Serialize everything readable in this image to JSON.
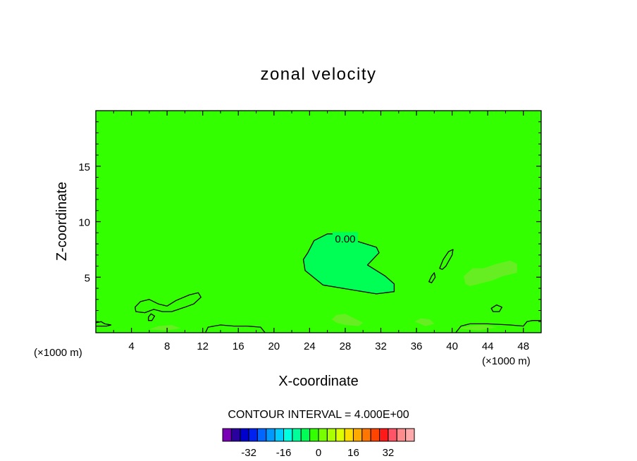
{
  "chart_data": {
    "type": "contour",
    "title": "zonal velocity",
    "xlabel": "X-coordinate",
    "ylabel": "Z-coordinate",
    "x_unit": "(×1000 m)",
    "xlim": [
      0,
      50
    ],
    "ylim": [
      0,
      20
    ],
    "x_ticks": [
      4,
      8,
      12,
      16,
      20,
      24,
      28,
      32,
      36,
      40,
      44,
      48
    ],
    "x_tick_labels": [
      "4",
      "8",
      "12",
      "16",
      "20",
      "24",
      "28",
      "32",
      "36",
      "40",
      "44",
      "48"
    ],
    "y_ticks": [
      5,
      10,
      15
    ],
    "y_tick_labels": [
      "5",
      "10",
      "15"
    ],
    "background_color": "#33ff00",
    "contour_label": "0.00",
    "contour_interval_text": "CONTOUR INTERVAL = 4.000E+00",
    "colorbar": {
      "colors": [
        "#7a00b8",
        "#2a009e",
        "#0000cc",
        "#0022f0",
        "#0066ff",
        "#0099ff",
        "#00ccff",
        "#00ffe0",
        "#00ff99",
        "#00ff55",
        "#33ff00",
        "#77ff00",
        "#aaff00",
        "#ddff00",
        "#ffdd00",
        "#ffaa00",
        "#ff7700",
        "#ff4400",
        "#ff1a1a",
        "#ff5566",
        "#ff8c8c",
        "#ffaaaa"
      ],
      "tick_values": [
        -32,
        -16,
        0,
        16,
        32
      ],
      "tick_labels": [
        "-32",
        "-16",
        "0",
        "16",
        "32"
      ]
    },
    "regions": [
      {
        "name": "negative-core",
        "fill": "#00ff55",
        "points": [
          [
            23.8,
            7.2
          ],
          [
            24.5,
            8.3
          ],
          [
            26,
            8.9
          ],
          [
            27.5,
            8.9
          ],
          [
            29.5,
            8.2
          ],
          [
            31.5,
            7.7
          ],
          [
            31.8,
            7.2
          ],
          [
            30.5,
            6.1
          ],
          [
            32.5,
            5.1
          ],
          [
            33.5,
            4.4
          ],
          [
            33.5,
            3.7
          ],
          [
            31.5,
            3.5
          ],
          [
            28.5,
            3.9
          ],
          [
            25.5,
            4.3
          ],
          [
            23.5,
            5.6
          ],
          [
            23.3,
            6.6
          ]
        ]
      },
      {
        "name": "weak-positive-44",
        "fill": "#66ee22",
        "points": [
          [
            41.3,
            5.1
          ],
          [
            42.3,
            5.8
          ],
          [
            43.5,
            5.8
          ],
          [
            45,
            6.2
          ],
          [
            46.5,
            6.5
          ],
          [
            47.3,
            6.2
          ],
          [
            47.3,
            5.4
          ],
          [
            45.7,
            5.1
          ],
          [
            44.5,
            4.7
          ],
          [
            43,
            4.4
          ],
          [
            42,
            4.2
          ],
          [
            41.5,
            4.4
          ]
        ]
      },
      {
        "name": "weak-positive-27",
        "fill": "#66ee22",
        "points": [
          [
            26.5,
            1.2
          ],
          [
            27,
            1.6
          ],
          [
            28,
            1.7
          ],
          [
            29,
            1.3
          ],
          [
            30,
            0.9
          ],
          [
            29.5,
            0.6
          ],
          [
            28,
            0.7
          ],
          [
            27,
            0.9
          ]
        ]
      },
      {
        "name": "weak-positive-37",
        "fill": "#66ee22",
        "points": [
          [
            35.8,
            1
          ],
          [
            36.5,
            1.3
          ],
          [
            37.5,
            1.2
          ],
          [
            38,
            0.8
          ],
          [
            37,
            0.6
          ]
        ]
      },
      {
        "name": "weak-positive-8",
        "fill": "#66ee22",
        "points": [
          [
            6,
            0.3
          ],
          [
            7,
            0.6
          ],
          [
            8.5,
            0.7
          ],
          [
            9.5,
            0.4
          ],
          [
            8,
            0.2
          ]
        ]
      },
      {
        "name": "weak-positive-43",
        "fill": "#66ee22",
        "points": [
          [
            40.5,
            0.4
          ],
          [
            42,
            0.6
          ],
          [
            43.5,
            0.7
          ],
          [
            45,
            0.5
          ],
          [
            43,
            0.2
          ]
        ]
      }
    ],
    "contours": [
      {
        "name": "zero-contour-core",
        "closed": true,
        "points": [
          [
            23.8,
            7.2
          ],
          [
            24.5,
            8.3
          ],
          [
            26,
            8.9
          ],
          [
            27.5,
            8.9
          ],
          [
            29.5,
            8.2
          ],
          [
            31.5,
            7.7
          ],
          [
            31.8,
            7.2
          ],
          [
            30.5,
            6.1
          ],
          [
            32.5,
            5.1
          ],
          [
            33.5,
            4.4
          ],
          [
            33.5,
            3.7
          ],
          [
            31.5,
            3.5
          ],
          [
            28.5,
            3.9
          ],
          [
            25.5,
            4.3
          ],
          [
            23.5,
            5.6
          ],
          [
            23.3,
            6.6
          ]
        ]
      },
      {
        "name": "zero-contour-low-4-12",
        "closed": true,
        "points": [
          [
            4.4,
            2.3
          ],
          [
            5,
            2.8
          ],
          [
            6,
            3
          ],
          [
            7,
            2.6
          ],
          [
            8,
            2.4
          ],
          [
            9,
            2.9
          ],
          [
            10.5,
            3.4
          ],
          [
            11.5,
            3.6
          ],
          [
            11.8,
            3.2
          ],
          [
            11,
            2.6
          ],
          [
            10,
            2.3
          ],
          [
            8.5,
            1.9
          ],
          [
            7.5,
            1.9
          ],
          [
            6.5,
            2.1
          ],
          [
            5.5,
            1.8
          ],
          [
            4.5,
            1.9
          ]
        ]
      },
      {
        "name": "zero-contour-39-6",
        "closed": true,
        "points": [
          [
            38.6,
            5.8
          ],
          [
            39,
            6.6
          ],
          [
            39.6,
            7.3
          ],
          [
            40.1,
            7.5
          ],
          [
            40,
            7
          ],
          [
            39.3,
            6
          ],
          [
            38.9,
            5.7
          ]
        ]
      },
      {
        "name": "zero-contour-37-5",
        "closed": true,
        "points": [
          [
            37.4,
            4.6
          ],
          [
            37.7,
            5.1
          ],
          [
            38,
            5.4
          ],
          [
            38.1,
            5
          ],
          [
            37.7,
            4.5
          ]
        ]
      },
      {
        "name": "zero-contour-45-2",
        "closed": true,
        "points": [
          [
            44.4,
            2.2
          ],
          [
            45,
            2.5
          ],
          [
            45.6,
            2.3
          ],
          [
            45.3,
            1.9
          ],
          [
            44.6,
            1.9
          ]
        ]
      },
      {
        "name": "zero-contour-6-1",
        "closed": true,
        "points": [
          [
            5.9,
            1.4
          ],
          [
            6.2,
            1.7
          ],
          [
            6.6,
            1.5
          ],
          [
            6.3,
            1.1
          ],
          [
            5.9,
            1.1
          ]
        ]
      },
      {
        "name": "zero-contour-bottom-13-19",
        "closed": false,
        "points": [
          [
            12.3,
            0
          ],
          [
            12.6,
            0.5
          ],
          [
            14,
            0.7
          ],
          [
            15.5,
            0.6
          ],
          [
            17,
            0.6
          ],
          [
            18.5,
            0.5
          ],
          [
            19,
            0
          ]
        ]
      },
      {
        "name": "zero-contour-bottom-left",
        "closed": false,
        "points": [
          [
            0,
            0.9
          ],
          [
            0.6,
            1
          ],
          [
            1,
            0.8
          ],
          [
            1.7,
            0.7
          ],
          [
            1.2,
            0.6
          ],
          [
            0,
            0.6
          ]
        ]
      },
      {
        "name": "zero-contour-bottom-41-50",
        "closed": false,
        "points": [
          [
            40.4,
            0
          ],
          [
            41,
            0.6
          ],
          [
            42,
            0.8
          ],
          [
            44,
            0.8
          ],
          [
            46.5,
            0.7
          ],
          [
            48,
            0.6
          ],
          [
            48.4,
            1
          ],
          [
            49,
            1.1
          ],
          [
            50,
            1.1
          ]
        ]
      }
    ]
  }
}
